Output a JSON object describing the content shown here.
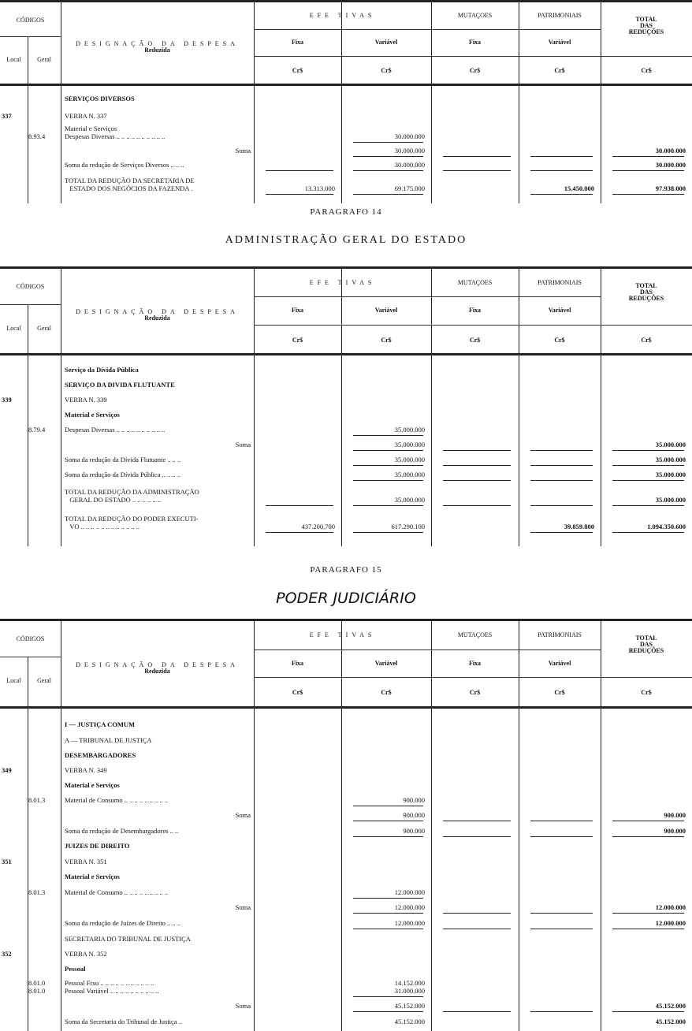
{
  "header": {
    "codigos": "CÓDIGOS",
    "local": "Local",
    "geral": "Geral",
    "designacao": "DESIGNAÇÃO DA DESPESA",
    "reduzida": "Reduzida",
    "efetivas": "EFE TIVAS",
    "mutacoes": "MUTAÇOES",
    "patrimoniais": "PATRIMONIAIS",
    "fixa": "Fixa",
    "variavel": "Variável",
    "total": "TOTAL\nDAS\nREDUÇÕES",
    "currency": "Cr$"
  },
  "captions": {
    "p14": "PARAGRAFO 14",
    "p14_title": "ADMINISTRAÇÃO GERAL DO ESTADO",
    "p15": "PARAGRAFO 15",
    "p15_title": "PODER JUDICIÁRIO"
  },
  "tables": [
    {
      "rows": [
        {
          "local": "",
          "geral": "",
          "desc": "SERVIÇOS DIVERSOS",
          "bold": true
        },
        {
          "local": "337",
          "geral": "",
          "desc": "VERBA N. 337"
        },
        {
          "local": "",
          "geral": "8.93.4",
          "desc": "Material e Serviços\nDespesas Diversas .. .. .. .. .. .. .. .. .. ..",
          "v": [
            "",
            "30.000.000",
            "",
            "",
            ""
          ],
          "rules": [
            1
          ]
        },
        {
          "desc": "Soma",
          "right": true,
          "v": [
            "",
            "30.000.000",
            "",
            "",
            "30.000.000"
          ],
          "rules": [
            1,
            2,
            3,
            4
          ]
        },
        {
          "desc": "Soma da redução de Serviços Diversos .. .. ..",
          "v": [
            "",
            "30.000.000",
            "",
            "",
            "30.000.000"
          ],
          "rules": [
            0,
            1,
            2,
            3,
            4
          ]
        },
        {
          "desc": "TOTAL DA REDUÇÃO DA SECRETARIA DE\n   ESTADO DOS NEGÓCIOS DA FAZENDA .",
          "v": [
            "13.313.000",
            "69.175.000",
            "",
            "15.450.000",
            "97.938.000"
          ],
          "rules": [
            0,
            1,
            3,
            4
          ]
        }
      ]
    },
    {
      "rows": [
        {
          "desc": "Serviço da Dívida Pública",
          "bold": true
        },
        {
          "desc": "SERVIÇO DA DIVIDA FLUTUANTE",
          "bold": true
        },
        {
          "local": "339",
          "desc": "VERBA N. 339"
        },
        {
          "desc": "Material e Serviços",
          "bold": true
        },
        {
          "geral": "8.79.4",
          "desc": "Despesas Diversas .. .. .. .. .. .. .. .. .. ..",
          "v": [
            "",
            "35.000.000",
            "",
            "",
            ""
          ],
          "rules": [
            1
          ]
        },
        {
          "desc": "Soma",
          "right": true,
          "v": [
            "",
            "35.000.000",
            "",
            "",
            "35.000.000"
          ],
          "rules": [
            1,
            2,
            3,
            4
          ]
        },
        {
          "desc": "Soma da redução da Dívida Flutuante .. .. ..",
          "v": [
            "",
            "35.000.000",
            "",
            "",
            "35.000.000"
          ],
          "rules": [
            1,
            2,
            3,
            4
          ]
        },
        {
          "desc": "Soma da redução da Dívida Pública .. .. .. ..",
          "v": [
            "",
            "35.000.000",
            "",
            "",
            "35.000.000"
          ],
          "rules": [
            1,
            2,
            3,
            4
          ]
        },
        {
          "desc": "TOTAL DA REDUÇÃO DA ADMINISTRAÇÃO\n   GERAL DO ESTADO .. .. .. .. .. ..",
          "v": [
            "",
            "35.000.000",
            "",
            "",
            "35.000.000"
          ],
          "rules": [
            0,
            1,
            2,
            3,
            4
          ]
        },
        {
          "desc": "TOTAL DA REDUÇÃO DO PODER EXECUTI-\n   VO .. .. .. .. .. .. .. .. .. .. .. ..",
          "v": [
            "437.200.700",
            "617.290.100",
            "",
            "39.859.800",
            "1.094.350.600"
          ],
          "rules": [
            0,
            1,
            3,
            4
          ]
        }
      ]
    },
    {
      "rows": [
        {
          "desc": "I — JUSTIÇA COMUM",
          "bold": true
        },
        {
          "desc": "A — TRIBUNAL DE JUSTIÇA"
        },
        {
          "desc": "DESEMBARGADORES",
          "bold": true
        },
        {
          "local": "349",
          "desc": "VERBA N. 349"
        },
        {
          "desc": "Material e Serviços",
          "bold": true
        },
        {
          "geral": "8.01.3",
          "desc": "Material de Consumo .. .. .. .. .. .. .. .. ..",
          "v": [
            "",
            "900.000",
            "",
            "",
            ""
          ],
          "rules": [
            1
          ]
        },
        {
          "desc": "Soma",
          "right": true,
          "v": [
            "",
            "900.000",
            "",
            "",
            "900.000"
          ],
          "rules": [
            1,
            2,
            3,
            4
          ]
        },
        {
          "desc": "Soma da redução de Desembargadores .. ..",
          "v": [
            "",
            "900.000",
            "",
            "",
            "900.000"
          ],
          "rules": [
            1,
            2,
            3,
            4
          ]
        },
        {
          "desc": "JUIZES DE DIREITO",
          "bold": true
        },
        {
          "local": "351",
          "desc": "VERBA N. 351"
        },
        {
          "desc": "Material e Serviços",
          "bold": true
        },
        {
          "geral": "8.01.3",
          "desc": "Material de Consumo .. .. .. .. .. .. .. .. ..",
          "v": [
            "",
            "12.000.000",
            "",
            "",
            ""
          ],
          "rules": [
            1
          ]
        },
        {
          "desc": "Soma",
          "right": true,
          "v": [
            "",
            "12.000.000",
            "",
            "",
            "12.000.000"
          ],
          "rules": [
            1,
            2,
            3,
            4
          ]
        },
        {
          "desc": "Soma da redução de Juízes de Direito .. .. ..",
          "v": [
            "",
            "12.000.000",
            "",
            "",
            "12.000.000"
          ],
          "rules": [
            1,
            2,
            3,
            4
          ]
        },
        {
          "desc": "SECRETARIA DO TRIBUNAL DE JUSTIÇA"
        },
        {
          "local": "352",
          "desc": "VERBA N. 352"
        },
        {
          "desc": "Pessoal",
          "bold": true
        },
        {
          "geral": "8.01.0\n8.01.0",
          "desc": "Pessoal Fixo .. .. .. .. .. .. .. .. .. .. ..\nPessoal Variável .. .. .. .. .. .. .. .. .. ..",
          "v": [
            "",
            "14.152.000\n31.000.000",
            "",
            "",
            ""
          ],
          "rules": [
            1
          ]
        },
        {
          "desc": "Soma",
          "right": true,
          "v": [
            "",
            "45.152.000",
            "",
            "",
            "45.152.000"
          ],
          "rules": [
            1,
            2,
            3,
            4
          ]
        },
        {
          "desc": "Soma da Secretaria do Tribunal de Justiça ..",
          "v": [
            "",
            "45.152.000",
            "",
            "",
            "45.152.000"
          ]
        }
      ]
    }
  ]
}
